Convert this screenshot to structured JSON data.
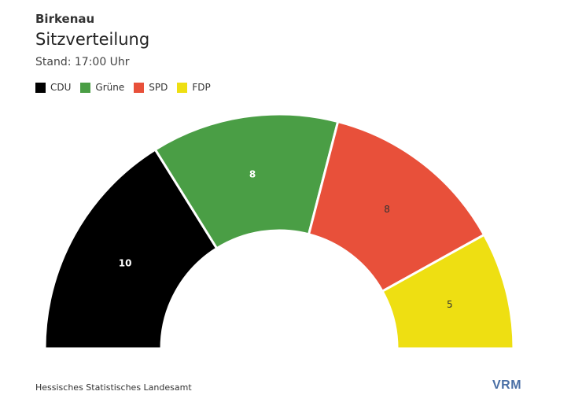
{
  "header": {
    "kicker": "Birkenau",
    "title": "Sitzverteilung",
    "subtitle": "Stand: 17:00 Uhr"
  },
  "legend": [
    {
      "label": "CDU",
      "color": "#000000"
    },
    {
      "label": "Grüne",
      "color": "#4a9e45"
    },
    {
      "label": "SPD",
      "color": "#e8503a"
    },
    {
      "label": "FDP",
      "color": "#eedf12"
    }
  ],
  "chart_data": {
    "type": "pie",
    "subtype": "semicircle-donut",
    "title": "Sitzverteilung",
    "categories": [
      "CDU",
      "Grüne",
      "SPD",
      "FDP"
    ],
    "values": [
      10,
      8,
      8,
      5
    ],
    "colors": [
      "#000000",
      "#4a9e45",
      "#e8503a",
      "#eedf12"
    ],
    "label_colors": [
      "#ffffff",
      "#ffffff",
      "#333333",
      "#333333"
    ],
    "legend_position": "top-left"
  },
  "footer": {
    "source": "Hessisches Statistisches Landesamt",
    "logo": "VRM"
  }
}
